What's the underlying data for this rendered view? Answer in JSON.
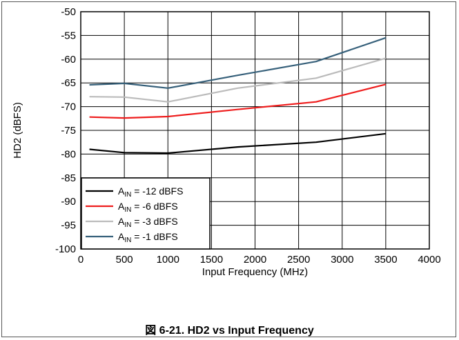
{
  "caption": "図 6-21. HD2 vs Input Frequency",
  "chart_data": {
    "type": "line",
    "xlabel": "Input Frequency (MHz)",
    "ylabel": "HD2 (dBFS)",
    "xlim": [
      0,
      4000
    ],
    "ylim": [
      -100,
      -50
    ],
    "xticks": [
      0,
      500,
      1000,
      1500,
      2000,
      2500,
      3000,
      3500,
      4000
    ],
    "yticks": [
      -50,
      -55,
      -60,
      -65,
      -70,
      -75,
      -80,
      -85,
      -90,
      -95,
      -100
    ],
    "grid": true,
    "legend_position": "bottom-left",
    "series": [
      {
        "name": "AIN = -12 dBFS",
        "legend_main": "A",
        "legend_sub": "IN",
        "legend_rest": " = -12 dBFS",
        "color": "#000000",
        "x": [
          100,
          500,
          1000,
          1800,
          2700,
          3500
        ],
        "y": [
          -79,
          -79.7,
          -79.8,
          -78.5,
          -77.5,
          -75.7
        ]
      },
      {
        "name": "AIN = -6 dBFS",
        "legend_main": "A",
        "legend_sub": "IN",
        "legend_rest": " = -6 dBFS",
        "color": "#ee1c1c",
        "x": [
          100,
          500,
          1000,
          1800,
          2700,
          3500
        ],
        "y": [
          -72.2,
          -72.4,
          -72.1,
          -70.6,
          -69,
          -65.3
        ]
      },
      {
        "name": "AIN = -3 dBFS",
        "legend_main": "A",
        "legend_sub": "IN",
        "legend_rest": " = -3 dBFS",
        "color": "#bbbbbb",
        "x": [
          100,
          500,
          1000,
          1800,
          2700,
          3500
        ],
        "y": [
          -67.9,
          -68,
          -69,
          -66.1,
          -64,
          -59.8
        ]
      },
      {
        "name": "AIN = -1 dBFS",
        "legend_main": "A",
        "legend_sub": "IN",
        "legend_rest": " = -1 dBFS",
        "color": "#36607a",
        "x": [
          100,
          500,
          1000,
          1800,
          2700,
          3500
        ],
        "y": [
          -65.4,
          -65.1,
          -66.1,
          -63.4,
          -60.5,
          -55.5
        ]
      }
    ]
  }
}
